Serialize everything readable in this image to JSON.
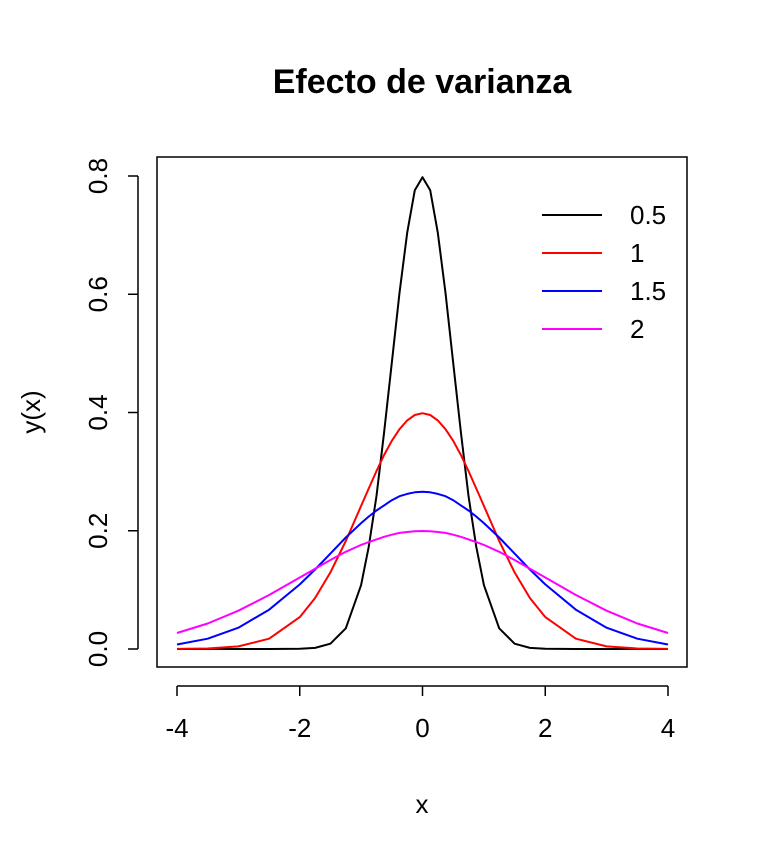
{
  "chart_data": {
    "type": "line",
    "title": "Efecto de varianza",
    "xlabel": "x",
    "ylabel": "y(x)",
    "xlim": [
      -4,
      4
    ],
    "ylim": [
      0,
      0.8
    ],
    "x_ticks": [
      -4,
      -2,
      0,
      2,
      4
    ],
    "y_ticks": [
      0.0,
      0.2,
      0.4,
      0.6,
      0.8
    ],
    "x_tick_labels": [
      "-4",
      "-2",
      "0",
      "2",
      "4"
    ],
    "y_tick_labels": [
      "0.0",
      "0.2",
      "0.4",
      "0.6",
      "0.8"
    ],
    "grid": false,
    "legend_position": "top-right",
    "x": [
      -4.0,
      -3.5,
      -3.0,
      -2.5,
      -2.0,
      -1.75,
      -1.5,
      -1.25,
      -1.0,
      -0.875,
      -0.75,
      -0.625,
      -0.5,
      -0.375,
      -0.25,
      -0.125,
      0.0,
      0.125,
      0.25,
      0.375,
      0.5,
      0.625,
      0.75,
      0.875,
      1.0,
      1.25,
      1.5,
      1.75,
      2.0,
      2.5,
      3.0,
      3.5,
      4.0
    ],
    "series": [
      {
        "name": "0.5",
        "color": "#000000",
        "values": [
          0.0,
          0.0,
          0.0,
          0.0,
          0.0003,
          0.0019,
          0.0089,
          0.035,
          0.108,
          0.1736,
          0.259,
          0.3664,
          0.4839,
          0.6023,
          0.7041,
          0.776,
          0.7979,
          0.776,
          0.7041,
          0.6023,
          0.4839,
          0.3664,
          0.259,
          0.1736,
          0.108,
          0.035,
          0.0089,
          0.0019,
          0.0003,
          0.0,
          0.0,
          0.0,
          0.0
        ]
      },
      {
        "name": "1",
        "color": "#ff0000",
        "values": [
          0.0001,
          0.0009,
          0.0044,
          0.0175,
          0.054,
          0.0863,
          0.1295,
          0.1826,
          0.242,
          0.2717,
          0.3011,
          0.3282,
          0.3521,
          0.3718,
          0.3867,
          0.3958,
          0.3989,
          0.3958,
          0.3867,
          0.3718,
          0.3521,
          0.3282,
          0.3011,
          0.2717,
          0.242,
          0.1826,
          0.1295,
          0.0863,
          0.054,
          0.0175,
          0.0044,
          0.0009,
          0.0001
        ]
      },
      {
        "name": "1.5",
        "color": "#0000ff",
        "values": [
          0.0076,
          0.0175,
          0.036,
          0.0665,
          0.1093,
          0.1344,
          0.1613,
          0.1885,
          0.213,
          0.2241,
          0.2342,
          0.2428,
          0.2516,
          0.2584,
          0.2623,
          0.265,
          0.266,
          0.265,
          0.2623,
          0.2584,
          0.2516,
          0.2428,
          0.2342,
          0.2241,
          0.213,
          0.1885,
          0.1613,
          0.1344,
          0.1093,
          0.0665,
          0.036,
          0.0175,
          0.0076
        ]
      },
      {
        "name": "2",
        "color": "#ff00ff",
        "values": [
          0.027,
          0.0431,
          0.0648,
          0.0913,
          0.121,
          0.1358,
          0.1506,
          0.1644,
          0.176,
          0.1809,
          0.1853,
          0.1897,
          0.1933,
          0.1963,
          0.1979,
          0.1992,
          0.1995,
          0.1992,
          0.1979,
          0.1963,
          0.1933,
          0.1897,
          0.1853,
          0.1809,
          0.176,
          0.1644,
          0.1506,
          0.1358,
          0.121,
          0.0913,
          0.0648,
          0.0431,
          0.027
        ]
      }
    ]
  }
}
